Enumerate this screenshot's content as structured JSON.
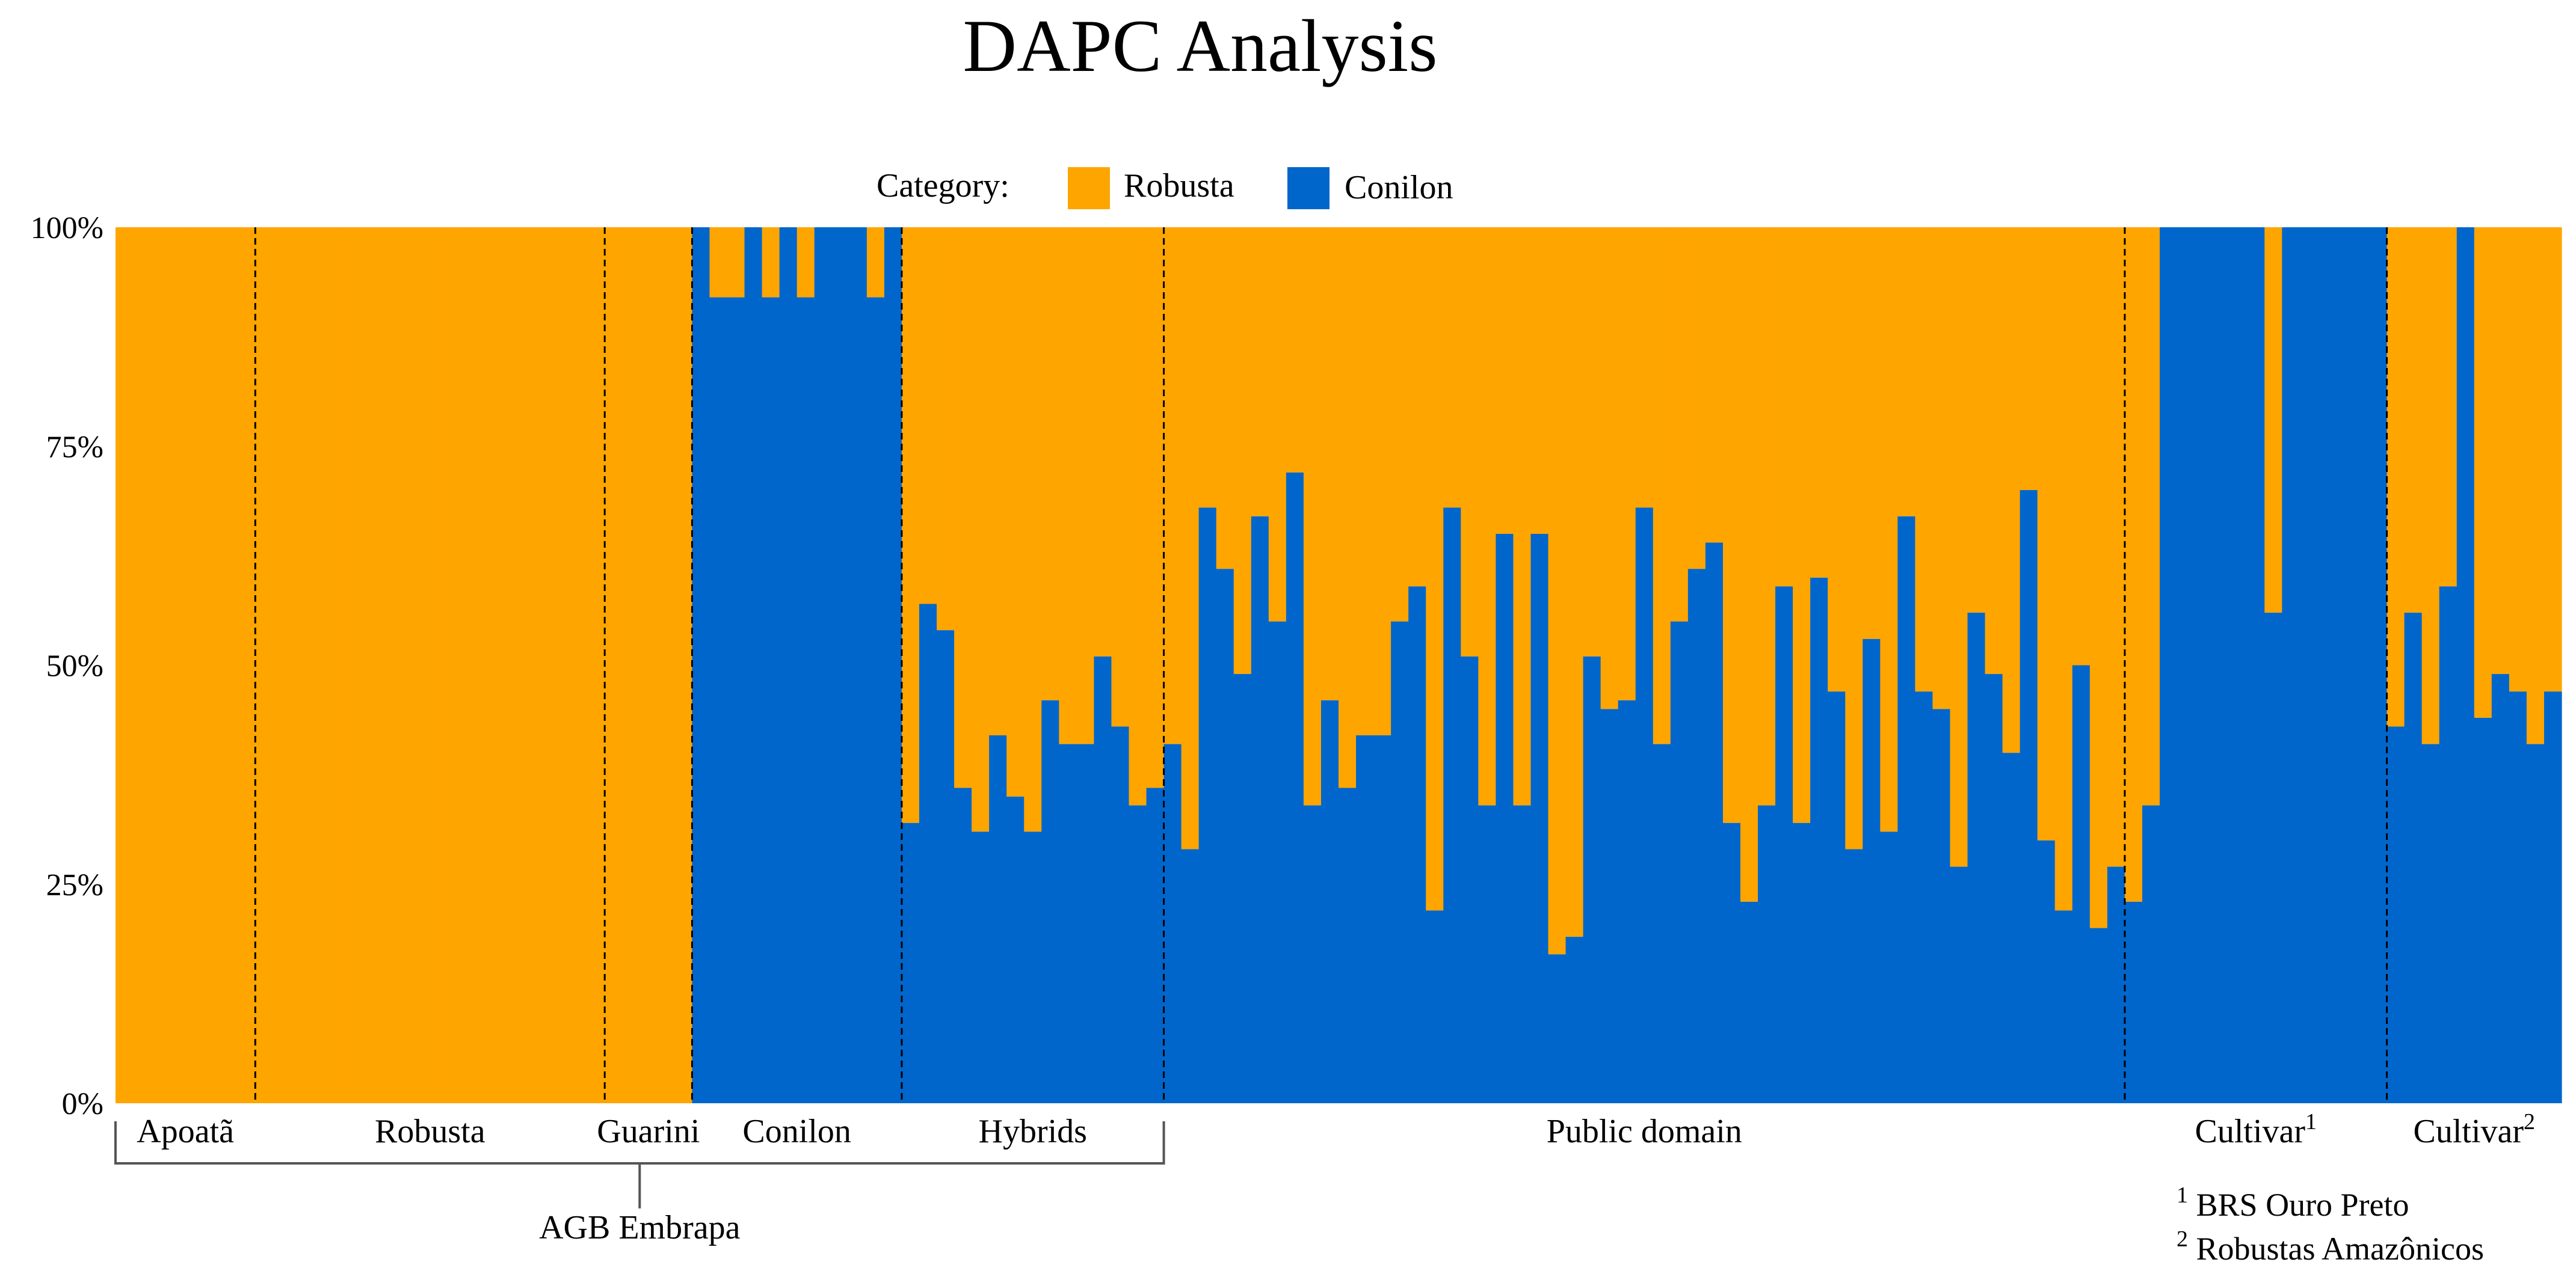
{
  "chart_data": {
    "type": "bar",
    "stacked": true,
    "title": "DAPC Analysis",
    "legend": {
      "title": "Category:",
      "placement": "top-center",
      "entries": [
        {
          "name": "Robusta",
          "color": "#FFA500"
        },
        {
          "name": "Conilon",
          "color": "#0066CC"
        }
      ]
    },
    "y_axis": {
      "ylim": [
        0,
        100
      ],
      "ticks": [
        0,
        25,
        50,
        75,
        100
      ],
      "tick_labels": [
        "0%",
        "25%",
        "50%",
        "75%",
        "100%"
      ]
    },
    "xlabel": "",
    "ylabel": "",
    "series": [
      {
        "name": "Conilon",
        "color": "#0066CC",
        "note": "per-sample Conilon membership (%); Robusta = 100 - value"
      },
      {
        "name": "Robusta",
        "color": "#FFA500"
      }
    ],
    "conilon_values": [
      0,
      0,
      0,
      0,
      0,
      0,
      0,
      0,
      0,
      0,
      0,
      0,
      0,
      0,
      0,
      0,
      0,
      0,
      0,
      0,
      0,
      0,
      0,
      0,
      0,
      0,
      0,
      0,
      0,
      0,
      0,
      0,
      0,
      100,
      92,
      92,
      100,
      92,
      100,
      92,
      100,
      100,
      100,
      92,
      100,
      32,
      57,
      54,
      36,
      31,
      42,
      35,
      31,
      46,
      41,
      41,
      51,
      43,
      34,
      36,
      41,
      29,
      68,
      61,
      49,
      67,
      55,
      72,
      34,
      46,
      36,
      42,
      42,
      55,
      59,
      22,
      68,
      51,
      34,
      65,
      34,
      65,
      17,
      19,
      51,
      45,
      46,
      68,
      41,
      55,
      61,
      64,
      32,
      23,
      34,
      59,
      32,
      60,
      47,
      29,
      53,
      31,
      67,
      47,
      45,
      27,
      56,
      49,
      40,
      70,
      30,
      22,
      50,
      20,
      27,
      23,
      34,
      100,
      100,
      100,
      100,
      100,
      100,
      56,
      100,
      100,
      100,
      100,
      100,
      100,
      43,
      56,
      41,
      59,
      100,
      44,
      49,
      47,
      41,
      47
    ],
    "groups": [
      {
        "label": "Apoatã",
        "count": 8
      },
      {
        "label": "Robusta",
        "count": 20
      },
      {
        "label": "Guarini",
        "count": 5
      },
      {
        "label": "Conilon",
        "count": 12
      },
      {
        "label": "Hybrids",
        "count": 15
      },
      {
        "label": "Public domain",
        "count": 55
      },
      {
        "label": "Cultivar",
        "sup": "1",
        "count": 15
      },
      {
        "label": "Cultivar",
        "sup": "2",
        "count": 10
      }
    ],
    "bracket": {
      "label": "AGB Embrapa",
      "from_group": 0,
      "to_group": 4
    },
    "footnotes": [
      {
        "sup": "1",
        "text": "BRS Ouro Preto"
      },
      {
        "sup": "2",
        "text": "Robustas Amazônicos"
      }
    ]
  }
}
